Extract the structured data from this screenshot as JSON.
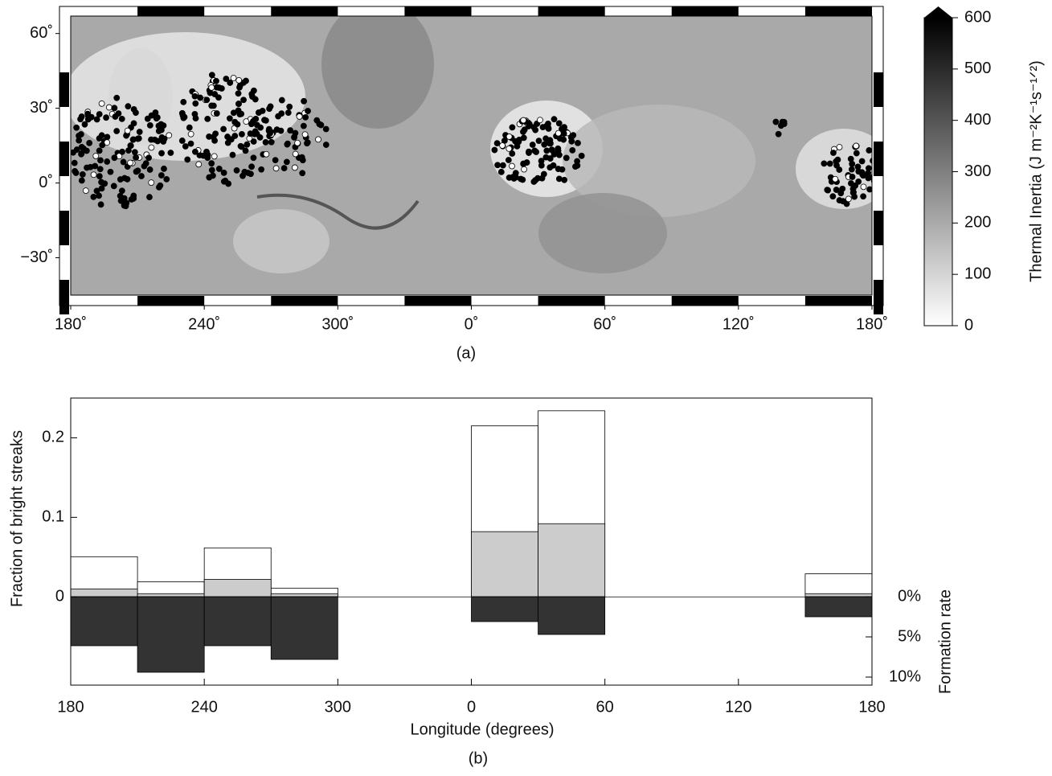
{
  "chart_data": [
    {
      "type": "map",
      "caption": "(a)",
      "xlim": [
        180,
        540
      ],
      "xticks": [
        {
          "value": 180,
          "label": "180˚"
        },
        {
          "value": 240,
          "label": "240˚"
        },
        {
          "value": 300,
          "label": "300˚"
        },
        {
          "value": 360,
          "label": "0˚"
        },
        {
          "value": 420,
          "label": "60˚"
        },
        {
          "value": 480,
          "label": "120˚"
        },
        {
          "value": 540,
          "label": "180˚"
        }
      ],
      "ylim": [
        -45,
        67
      ],
      "yticks": [
        {
          "value": 60,
          "label": "60˚"
        },
        {
          "value": 30,
          "label": "30˚"
        },
        {
          "value": 0,
          "label": "0˚"
        },
        {
          "value": -30,
          "label": "−30˚"
        }
      ],
      "colorbar": {
        "label": "Thermal Inertia (J m⁻²K⁻¹s⁻¹ᐟ²)",
        "lim": [
          0,
          600
        ],
        "ticks": [
          0,
          100,
          200,
          300,
          400,
          500,
          600
        ]
      }
    },
    {
      "type": "histogram",
      "caption": "(b)",
      "x_label": "Longitude (degrees)",
      "y_label": "Fraction of bright streaks",
      "y2_label": "Formation rate",
      "bins": [
        180,
        210,
        240,
        270,
        300,
        330,
        360,
        390,
        420,
        450,
        480,
        510,
        540
      ],
      "xlim": [
        180,
        540
      ],
      "xticks": [
        180,
        240,
        300,
        {
          "value": 360,
          "label": "0"
        },
        {
          "value": 420,
          "label": "60"
        },
        {
          "value": 480,
          "label": "120"
        },
        {
          "value": 540,
          "label": "180"
        }
      ],
      "ylim": [
        -0.111,
        0.25
      ],
      "yticks": [
        0,
        0.1,
        0.2
      ],
      "y2lim": [
        11,
        -24.7
      ],
      "y2ticks": [
        {
          "value": 0,
          "label": "0%"
        },
        {
          "value": 5,
          "label": "5%"
        },
        {
          "value": 10,
          "label": "10%"
        }
      ],
      "series": [
        {
          "color": "#ffffff",
          "values": [
            0.0505,
            0.019,
            0.0616,
            0.011,
            null,
            null,
            0.215,
            0.234,
            null,
            null,
            null,
            0.029
          ]
        },
        {
          "color": "#cccccc",
          "values": [
            0.01,
            0.004,
            0.022,
            0.004,
            null,
            null,
            0.082,
            0.092,
            null,
            null,
            null,
            0.004
          ]
        },
        {
          "color": "#333333",
          "axis": "y2",
          "values": [
            6.1,
            9.4,
            6.1,
            7.8,
            null,
            null,
            3.1,
            4.7,
            null,
            null,
            null,
            2.5
          ]
        }
      ]
    }
  ]
}
